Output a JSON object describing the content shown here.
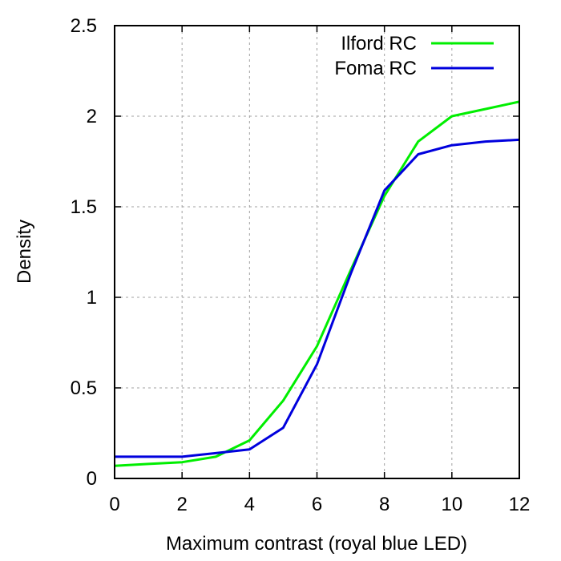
{
  "chart_data": {
    "type": "line",
    "title": "",
    "xlabel": "Maximum contrast (royal blue LED)",
    "ylabel": "Density",
    "xlim": [
      0,
      12
    ],
    "ylim": [
      0,
      2.5
    ],
    "grid": true,
    "legend_position": "top-right",
    "x_ticks": [
      "0",
      "2",
      "4",
      "6",
      "8",
      "10",
      "12"
    ],
    "y_ticks": [
      "0",
      "0.5",
      "1",
      "1.5",
      "2",
      "2.5"
    ],
    "x_tick_values": [
      0,
      2,
      4,
      6,
      8,
      10,
      12
    ],
    "y_tick_values": [
      0,
      0.5,
      1,
      1.5,
      2,
      2.5
    ],
    "series": [
      {
        "name": "Ilford RC",
        "color": "#00ee00",
        "x": [
          0,
          1,
          2,
          3,
          4,
          5,
          6,
          7,
          8,
          9,
          10,
          11,
          12
        ],
        "y": [
          0.07,
          0.08,
          0.09,
          0.12,
          0.21,
          0.43,
          0.73,
          1.15,
          1.56,
          1.86,
          2.0,
          2.04,
          2.08
        ]
      },
      {
        "name": "Foma RC",
        "color": "#0000dd",
        "x": [
          0,
          1,
          2,
          3,
          4,
          5,
          6,
          7,
          8,
          9,
          10,
          11,
          12
        ],
        "y": [
          0.12,
          0.12,
          0.12,
          0.14,
          0.16,
          0.28,
          0.63,
          1.13,
          1.59,
          1.79,
          1.84,
          1.86,
          1.87
        ]
      }
    ]
  }
}
